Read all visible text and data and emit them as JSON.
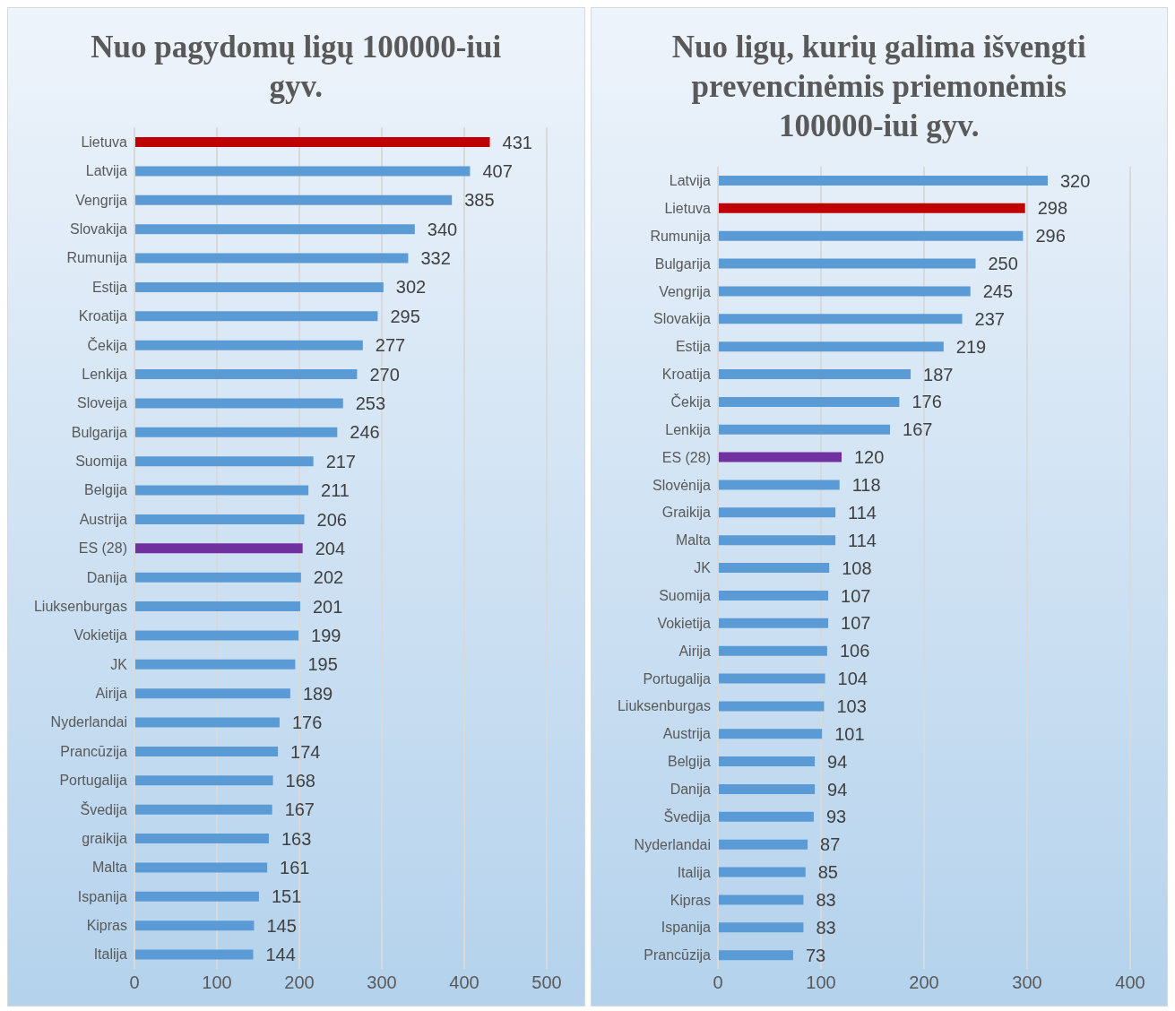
{
  "chart_data": [
    {
      "type": "bar",
      "orientation": "horizontal",
      "title": "Nuo pagydomų ligų 100000-iui gyv.",
      "categories": [
        "Lietuva",
        "Latvija",
        "Vengrija",
        "Slovakija",
        "Rumunija",
        "Estija",
        "Kroatija",
        "Čekija",
        "Lenkija",
        "Sloveija",
        "Bulgarija",
        "Suomija",
        "Belgija",
        "Austrija",
        "ES (28)",
        "Danija",
        "Liuksenburgas",
        "Vokietija",
        "JK",
        "Airija",
        "Nyderlandai",
        "Prancūzija",
        "Portugalija",
        "Švedija",
        "graikija",
        "Malta",
        "Ispanija",
        "Kipras",
        "Italija"
      ],
      "values": [
        431,
        407,
        385,
        340,
        332,
        302,
        295,
        277,
        270,
        253,
        246,
        217,
        211,
        206,
        204,
        202,
        201,
        199,
        195,
        189,
        176,
        174,
        168,
        167,
        163,
        161,
        151,
        145,
        144
      ],
      "colors": [
        "#c00000",
        "#5b9bd5",
        "#5b9bd5",
        "#5b9bd5",
        "#5b9bd5",
        "#5b9bd5",
        "#5b9bd5",
        "#5b9bd5",
        "#5b9bd5",
        "#5b9bd5",
        "#5b9bd5",
        "#5b9bd5",
        "#5b9bd5",
        "#5b9bd5",
        "#7030a0",
        "#5b9bd5",
        "#5b9bd5",
        "#5b9bd5",
        "#5b9bd5",
        "#5b9bd5",
        "#5b9bd5",
        "#5b9bd5",
        "#5b9bd5",
        "#5b9bd5",
        "#5b9bd5",
        "#5b9bd5",
        "#5b9bd5",
        "#5b9bd5",
        "#5b9bd5"
      ],
      "xlim": [
        0,
        500
      ],
      "xticks": [
        0,
        100,
        200,
        300,
        400,
        500
      ],
      "grid": "x",
      "data_labels": true
    },
    {
      "type": "bar",
      "orientation": "horizontal",
      "title": "Nuo ligų, kurių galima išvengti prevencinėmis priemonėmis 100000-iui gyv.",
      "categories": [
        "Latvija",
        "Lietuva",
        "Rumunija",
        "Bulgarija",
        "Vengrija",
        "Slovakija",
        "Estija",
        "Kroatija",
        "Čekija",
        "Lenkija",
        "ES (28)",
        "Slovėnija",
        "Graikija",
        "Malta",
        "JK",
        "Suomija",
        "Vokietija",
        "Airija",
        "Portugalija",
        "Liuksenburgas",
        "Austrija",
        "Belgija",
        "Danija",
        "Švedija",
        "Nyderlandai",
        "Italija",
        "Kipras",
        "Ispanija",
        "Prancūzija"
      ],
      "values": [
        320,
        298,
        296,
        250,
        245,
        237,
        219,
        187,
        176,
        167,
        120,
        118,
        114,
        114,
        108,
        107,
        107,
        106,
        104,
        103,
        101,
        94,
        94,
        93,
        87,
        85,
        83,
        83,
        73
      ],
      "colors": [
        "#5b9bd5",
        "#c00000",
        "#5b9bd5",
        "#5b9bd5",
        "#5b9bd5",
        "#5b9bd5",
        "#5b9bd5",
        "#5b9bd5",
        "#5b9bd5",
        "#5b9bd5",
        "#7030a0",
        "#5b9bd5",
        "#5b9bd5",
        "#5b9bd5",
        "#5b9bd5",
        "#5b9bd5",
        "#5b9bd5",
        "#5b9bd5",
        "#5b9bd5",
        "#5b9bd5",
        "#5b9bd5",
        "#5b9bd5",
        "#5b9bd5",
        "#5b9bd5",
        "#5b9bd5",
        "#5b9bd5",
        "#5b9bd5",
        "#5b9bd5",
        "#5b9bd5"
      ],
      "xlim": [
        0,
        400
      ],
      "xticks": [
        0,
        100,
        200,
        300,
        400
      ],
      "grid": "x",
      "data_labels": true
    }
  ]
}
